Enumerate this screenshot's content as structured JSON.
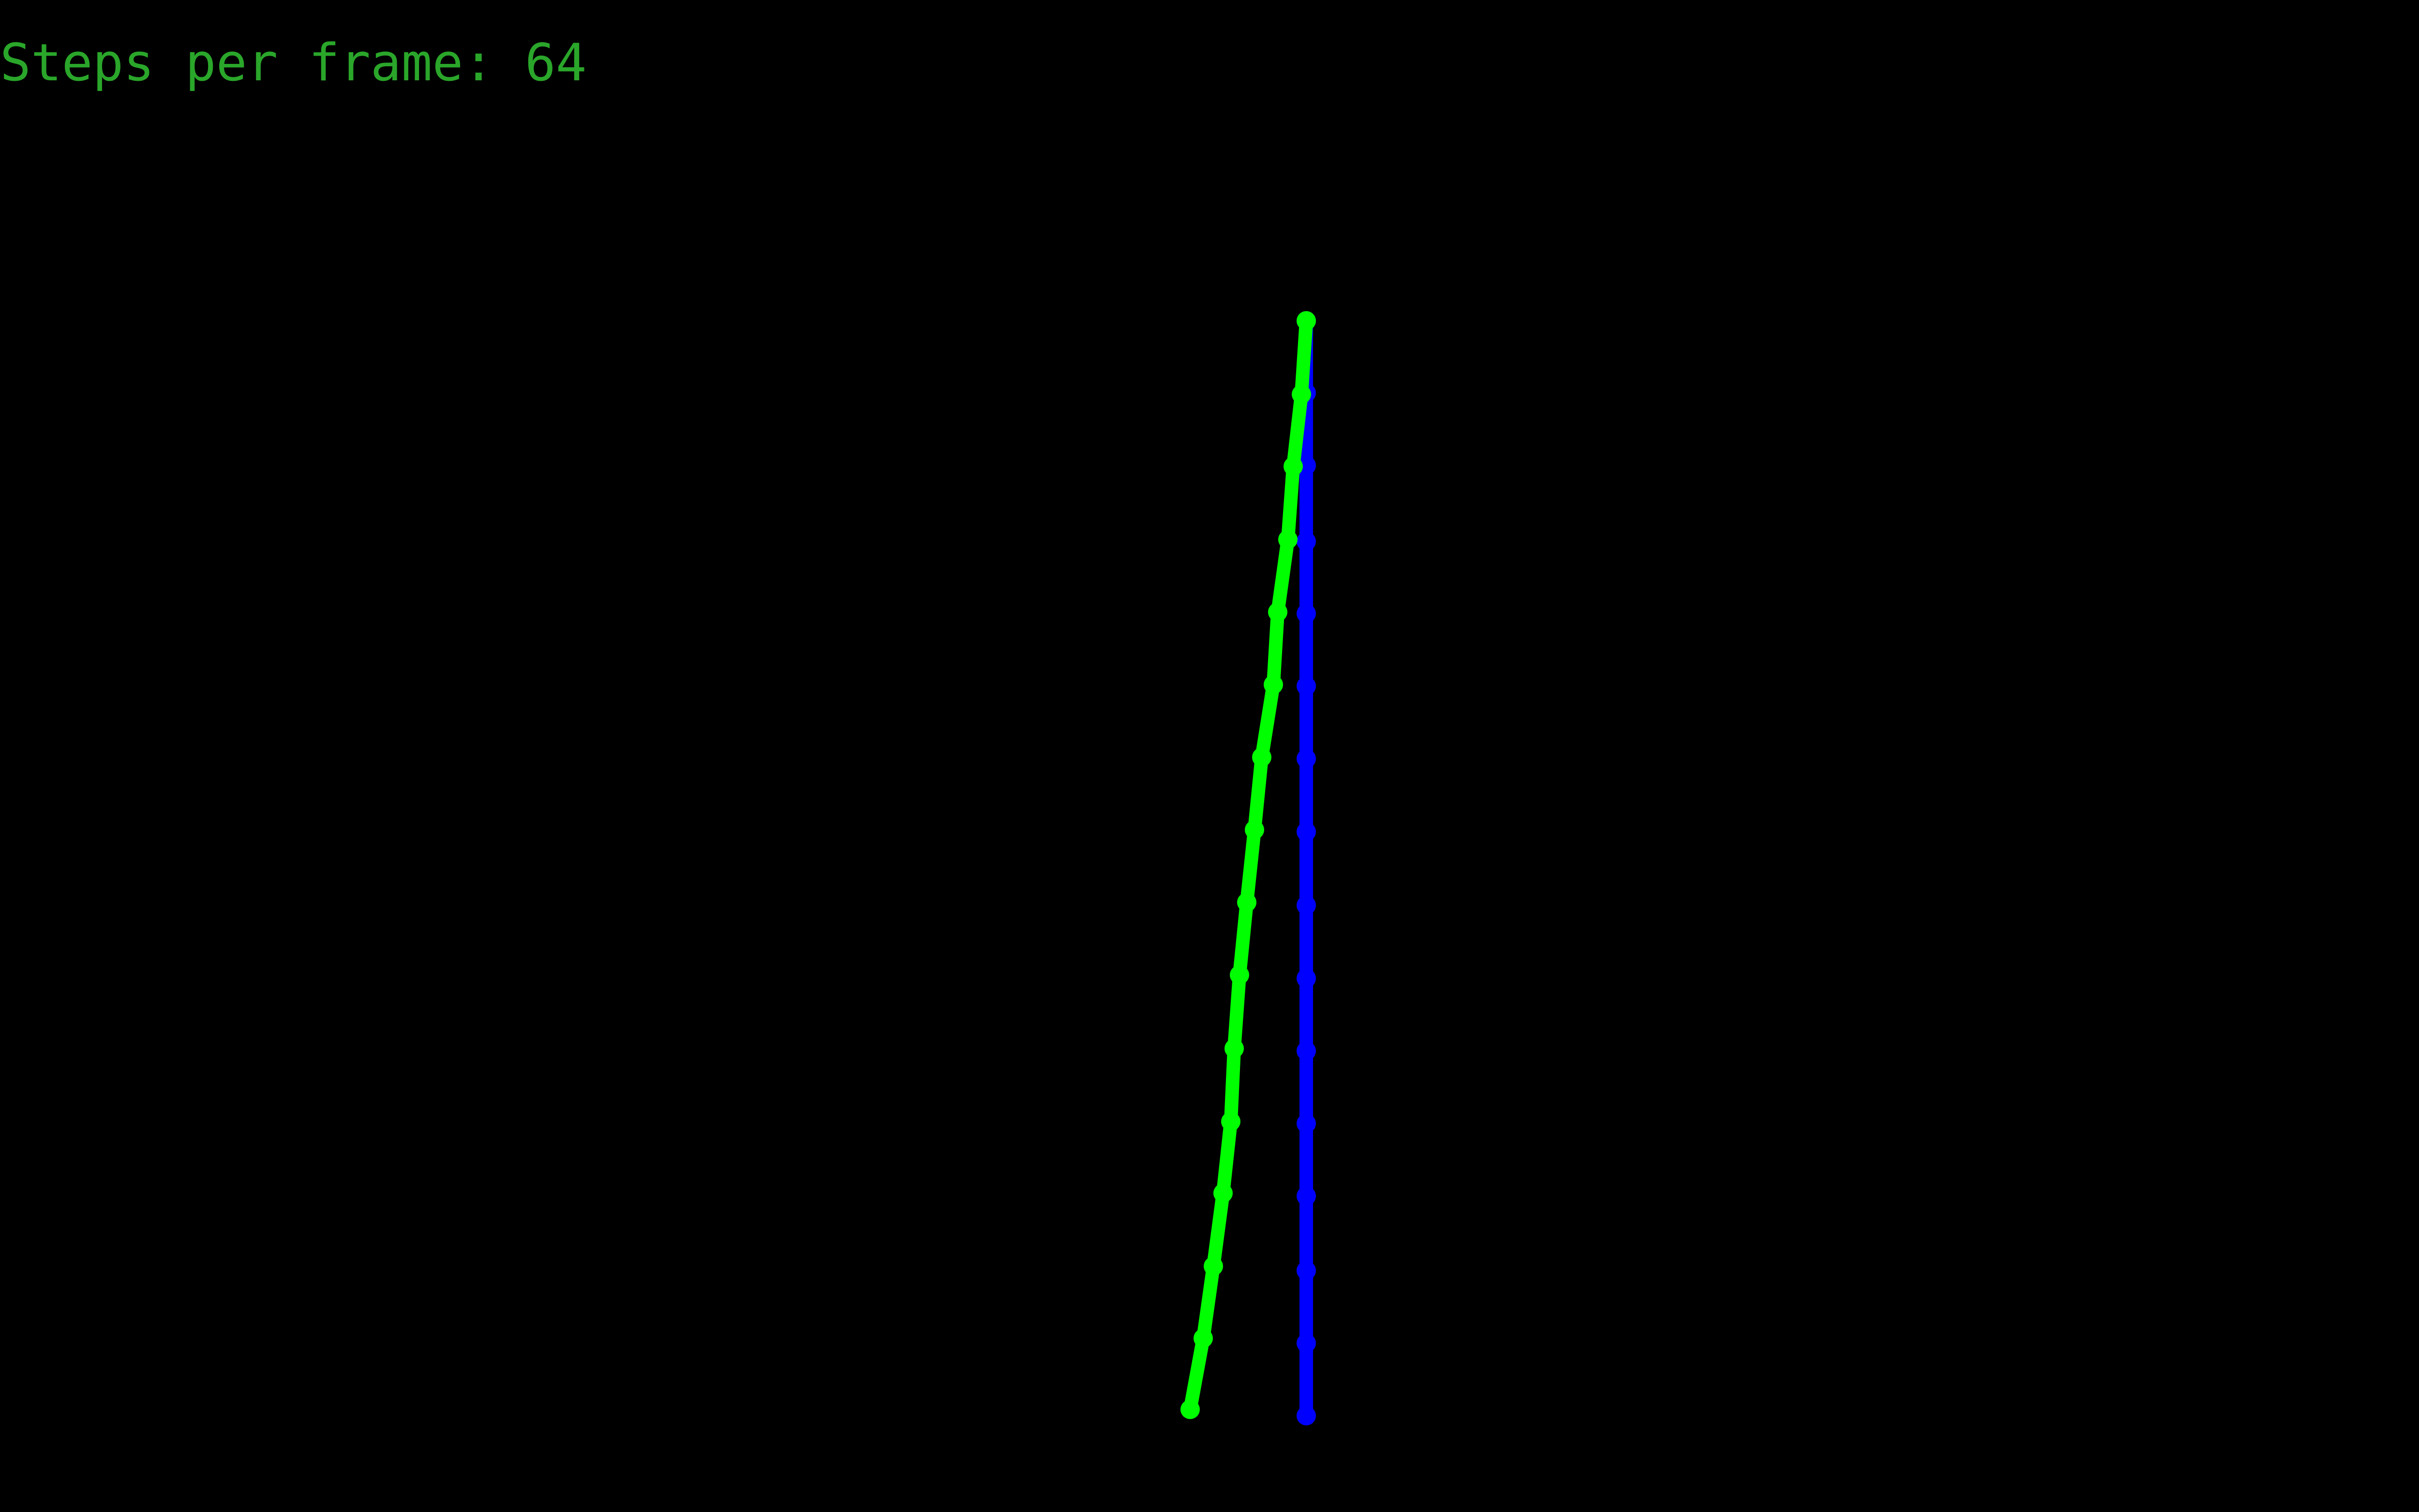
{
  "hud": {
    "steps_label": "Steps per frame: 64",
    "text_color": "#2aa62a"
  },
  "rope_blue": {
    "name": "blue-rope",
    "color": "#0000ff"
  },
  "rope_green": {
    "name": "green-rope",
    "color": "#00ff00"
  },
  "background": "#000000"
}
